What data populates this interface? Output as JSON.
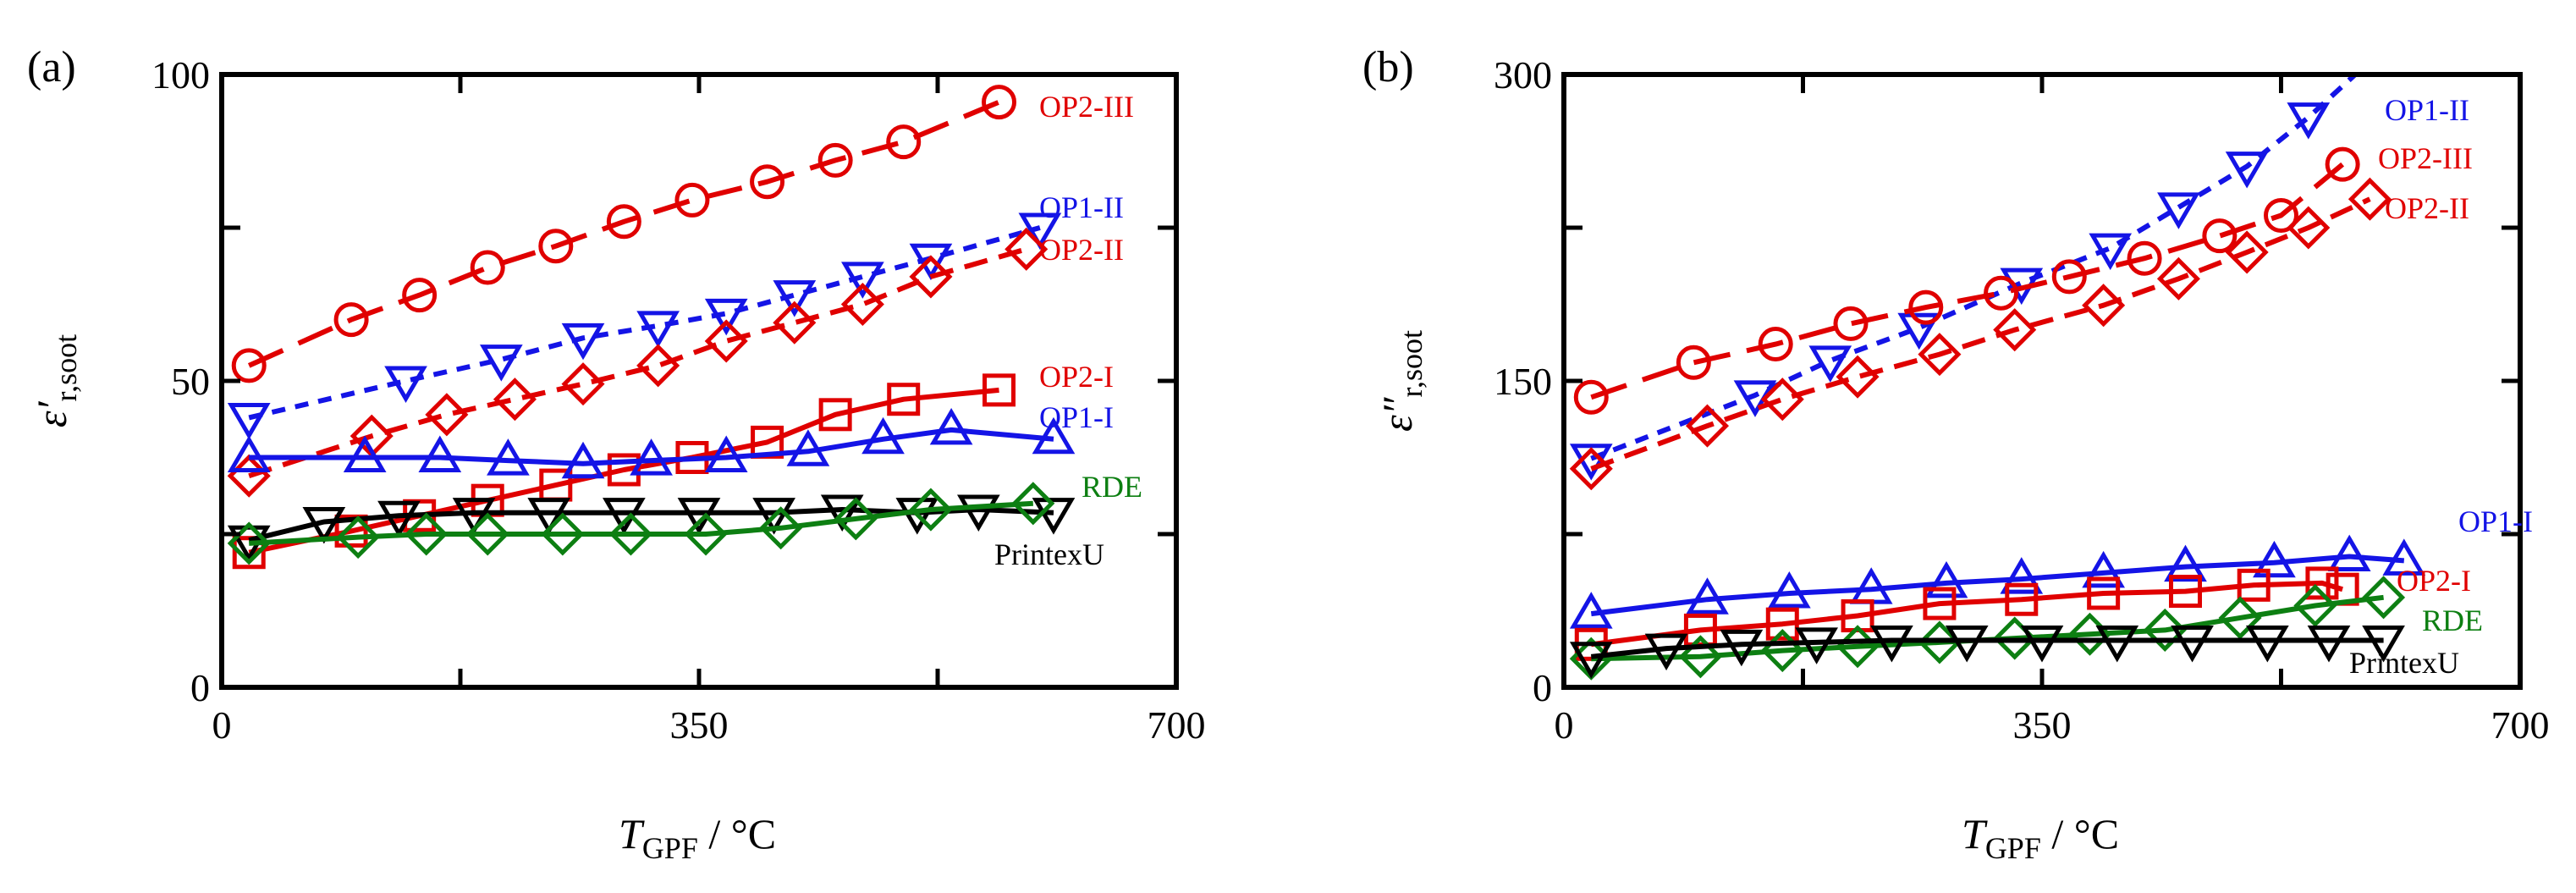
{
  "chart_data": [
    {
      "type": "line",
      "panel_label": "(a)",
      "xlabel": {
        "main": "T",
        "sub": "GPF",
        "unit": " / °C"
      },
      "ylabel": {
        "main": "ε′",
        "sub": "r,soot"
      },
      "xlim": [
        0,
        700
      ],
      "ylim": [
        0,
        100
      ],
      "xticks": [
        "0",
        "350",
        "700"
      ],
      "yticks": [
        "0",
        "50",
        "100"
      ],
      "series": [
        {
          "name": "OP2-III",
          "color": "#e00000",
          "marker": "circle",
          "dash": "long",
          "x": [
            20,
            95,
            145,
            195,
            245,
            295,
            345,
            400,
            450,
            500,
            570
          ],
          "y": [
            52.5,
            60,
            64,
            68.5,
            72,
            76,
            79.5,
            82.5,
            86,
            89,
            95.5
          ]
        },
        {
          "name": "OP1-II",
          "color": "#1414e6",
          "marker": "triangle-down",
          "dash": "short",
          "x": [
            20,
            135,
            205,
            265,
            320,
            370,
            420,
            470,
            520,
            600
          ],
          "y": [
            44,
            50,
            53.5,
            57,
            59,
            61,
            64,
            67,
            70,
            75
          ]
        },
        {
          "name": "OP2-II",
          "color": "#e00000",
          "marker": "diamond",
          "dash": "medium",
          "x": [
            20,
            110,
            165,
            215,
            265,
            320,
            370,
            420,
            470,
            520,
            590
          ],
          "y": [
            34.5,
            41,
            44.5,
            47,
            49.5,
            52.5,
            56.5,
            59.5,
            62.5,
            67,
            71.5
          ]
        },
        {
          "name": "OP2-I",
          "color": "#e00000",
          "marker": "square",
          "dash": "solid",
          "x": [
            20,
            95,
            145,
            195,
            245,
            295,
            345,
            400,
            450,
            500,
            570
          ],
          "y": [
            22,
            25.5,
            28,
            30.5,
            33,
            35.5,
            37.5,
            40,
            44.5,
            47,
            48.5
          ]
        },
        {
          "name": "OP1-I",
          "color": "#1414e6",
          "marker": "triangle-up",
          "dash": "solid",
          "x": [
            20,
            105,
            160,
            210,
            265,
            315,
            370,
            430,
            485,
            535,
            610
          ],
          "y": [
            37.5,
            37.5,
            37.5,
            37,
            36.5,
            37,
            37.5,
            38.5,
            40.5,
            42,
            40.5
          ]
        },
        {
          "name": "PrintexU",
          "color": "#000000",
          "marker": "triangle-down",
          "dash": "solid",
          "x": [
            20,
            75,
            130,
            185,
            240,
            295,
            350,
            405,
            455,
            510,
            555,
            610
          ],
          "y": [
            24,
            27,
            28,
            28.5,
            28.5,
            28.5,
            28.5,
            28.5,
            29,
            28.5,
            29,
            28.5
          ]
        },
        {
          "name": "RDE",
          "color": "#0d7f12",
          "marker": "diamond",
          "dash": "solid",
          "x": [
            20,
            100,
            150,
            195,
            250,
            300,
            355,
            410,
            465,
            520,
            595
          ],
          "y": [
            23.5,
            24.5,
            25,
            25,
            25,
            25,
            25,
            26,
            27.5,
            29,
            30
          ]
        }
      ],
      "series_labels": [
        {
          "text": "OP2-III",
          "color": "#e00000"
        },
        {
          "text": "OP1-II",
          "color": "#1414e6"
        },
        {
          "text": "OP2-II",
          "color": "#e00000"
        },
        {
          "text": "OP2-I",
          "color": "#e00000"
        },
        {
          "text": "OP1-I",
          "color": "#1414e6"
        },
        {
          "text": "RDE",
          "color": "#0d7f12"
        },
        {
          "text": "PrintexU",
          "color": "#000000"
        }
      ]
    },
    {
      "type": "line",
      "panel_label": "(b)",
      "xlabel": {
        "main": "T",
        "sub": "GPF",
        "unit": " / °C"
      },
      "ylabel": {
        "main": "ε″",
        "sub": "r,soot"
      },
      "xlim": [
        0,
        700
      ],
      "ylim": [
        0,
        300
      ],
      "xticks": [
        "0",
        "350",
        "700"
      ],
      "yticks": [
        "0",
        "150",
        "300"
      ],
      "series": [
        {
          "name": "OP1-II",
          "color": "#1414e6",
          "marker": "triangle-down",
          "dash": "short",
          "x": [
            20,
            140,
            195,
            260,
            335,
            400,
            450,
            500,
            545,
            620
          ],
          "y": [
            112,
            143,
            160,
            176,
            198,
            215,
            235,
            255,
            279,
            325
          ]
        },
        {
          "name": "OP2-III",
          "color": "#e00000",
          "marker": "circle",
          "dash": "long",
          "x": [
            20,
            95,
            155,
            210,
            265,
            320,
            370,
            425,
            480,
            525,
            570
          ],
          "y": [
            142,
            159,
            168,
            178,
            186,
            193,
            201,
            210,
            221,
            231,
            256
          ]
        },
        {
          "name": "OP2-II",
          "color": "#e00000",
          "marker": "diamond",
          "dash": "medium",
          "x": [
            20,
            105,
            160,
            215,
            275,
            330,
            395,
            450,
            500,
            545,
            590
          ],
          "y": [
            107,
            128,
            141,
            152,
            163,
            175,
            187,
            200,
            213,
            225,
            239
          ]
        },
        {
          "name": "OP1-I",
          "color": "#1414e6",
          "marker": "triangle-up",
          "dash": "solid",
          "x": [
            20,
            105,
            165,
            225,
            280,
            335,
            395,
            455,
            520,
            575,
            615
          ],
          "y": [
            36,
            43,
            46,
            48,
            51,
            53,
            56,
            59,
            61,
            64,
            62
          ]
        },
        {
          "name": "OP2-I",
          "color": "#e00000",
          "marker": "square",
          "dash": "solid",
          "x": [
            20,
            100,
            160,
            215,
            275,
            335,
            395,
            455,
            505,
            555,
            570
          ],
          "y": [
            21,
            28,
            31,
            35,
            41,
            43,
            46,
            47,
            50,
            51,
            48
          ]
        },
        {
          "name": "RDE",
          "color": "#0d7f12",
          "marker": "diamond",
          "dash": "solid",
          "x": [
            20,
            100,
            160,
            215,
            275,
            330,
            385,
            440,
            495,
            550,
            600
          ],
          "y": [
            14,
            15,
            18,
            20,
            22,
            24,
            26,
            28,
            34,
            40,
            44
          ]
        },
        {
          "name": "PrintexU",
          "color": "#000000",
          "marker": "triangle-down",
          "dash": "solid",
          "x": [
            20,
            75,
            130,
            185,
            240,
            295,
            350,
            405,
            460,
            515,
            560,
            600
          ],
          "y": [
            15,
            19,
            21,
            22,
            23,
            23,
            23,
            23,
            23,
            23,
            23,
            23
          ]
        }
      ],
      "series_labels": [
        {
          "text": "OP1-II",
          "color": "#1414e6"
        },
        {
          "text": "OP2-III",
          "color": "#e00000"
        },
        {
          "text": "OP2-II",
          "color": "#e00000"
        },
        {
          "text": "OP1-I",
          "color": "#1414e6"
        },
        {
          "text": "OP2-I",
          "color": "#e00000"
        },
        {
          "text": "RDE",
          "color": "#0d7f12"
        },
        {
          "text": "PrintexU",
          "color": "#000000"
        }
      ]
    }
  ]
}
